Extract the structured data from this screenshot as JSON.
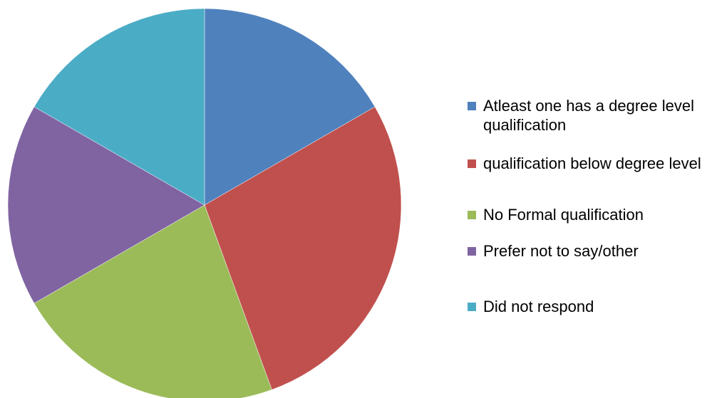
{
  "chart_data": {
    "type": "pie",
    "categories": [
      "Atleast one has a degree level qualification",
      "qualification below degree level",
      "No Formal qualification",
      "Prefer not to say/other",
      "Did not respond"
    ],
    "values": [
      6,
      10,
      8,
      6,
      6
    ],
    "colors": [
      "#4f81bd",
      "#c0504d",
      "#9bbb59",
      "#8064a2",
      "#4bacc6"
    ],
    "legend": "right"
  }
}
